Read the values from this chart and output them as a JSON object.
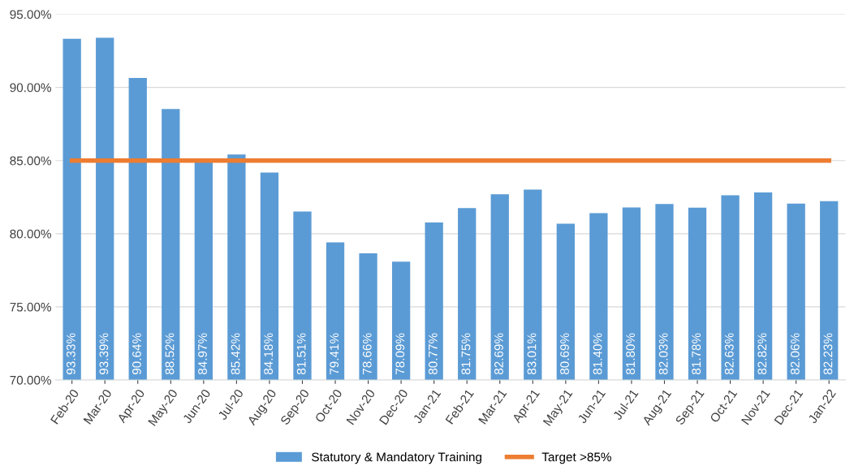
{
  "chart_data": {
    "type": "bar",
    "categories": [
      "Feb-20",
      "Mar-20",
      "Apr-20",
      "May-20",
      "Jun-20",
      "Jul-20",
      "Aug-20",
      "Sep-20",
      "Oct-20",
      "Nov-20",
      "Dec-20",
      "Jan-21",
      "Feb-21",
      "Mar-21",
      "Apr-21",
      "May-21",
      "Jun-21",
      "Jul-21",
      "Aug-21",
      "Sep-21",
      "Oct-21",
      "Nov-21",
      "Dec-21",
      "Jan-22"
    ],
    "series": [
      {
        "name": "Statutory & Mandatory Training",
        "color": "#5b9bd5",
        "values": [
          93.33,
          93.39,
          90.64,
          88.52,
          84.97,
          85.42,
          84.18,
          81.51,
          79.41,
          78.66,
          78.09,
          80.77,
          81.75,
          82.69,
          83.01,
          80.69,
          81.4,
          81.8,
          82.03,
          81.78,
          82.63,
          82.82,
          82.06,
          82.23
        ],
        "value_labels": [
          "93.33%",
          "93.39%",
          "90.64%",
          "88.52%",
          "84.97%",
          "85.42%",
          "84.18%",
          "81.51%",
          "79.41%",
          "78.66%",
          "78.09%",
          "80.77%",
          "81.75%",
          "82.69%",
          "83.01%",
          "80.69%",
          "81.40%",
          "81.80%",
          "82.03%",
          "81.78%",
          "82.63%",
          "82.82%",
          "82.06%",
          "82.23%"
        ]
      },
      {
        "name": "Target >85%",
        "type": "line",
        "color": "#ed7d31",
        "values": [
          85,
          85,
          85,
          85,
          85,
          85,
          85,
          85,
          85,
          85,
          85,
          85,
          85,
          85,
          85,
          85,
          85,
          85,
          85,
          85,
          85,
          85,
          85,
          85
        ]
      }
    ],
    "ylim": [
      70,
      95
    ],
    "yticks": [
      {
        "value": 70,
        "label": "70.00%"
      },
      {
        "value": 75,
        "label": "75.00%"
      },
      {
        "value": 80,
        "label": "80.00%"
      },
      {
        "value": 85,
        "label": "85.00%"
      },
      {
        "value": 90,
        "label": "90.00%"
      },
      {
        "value": 95,
        "label": "95.00%"
      }
    ],
    "grid": "y",
    "legend": "bottom",
    "marker": "none",
    "line_style": "solid"
  }
}
